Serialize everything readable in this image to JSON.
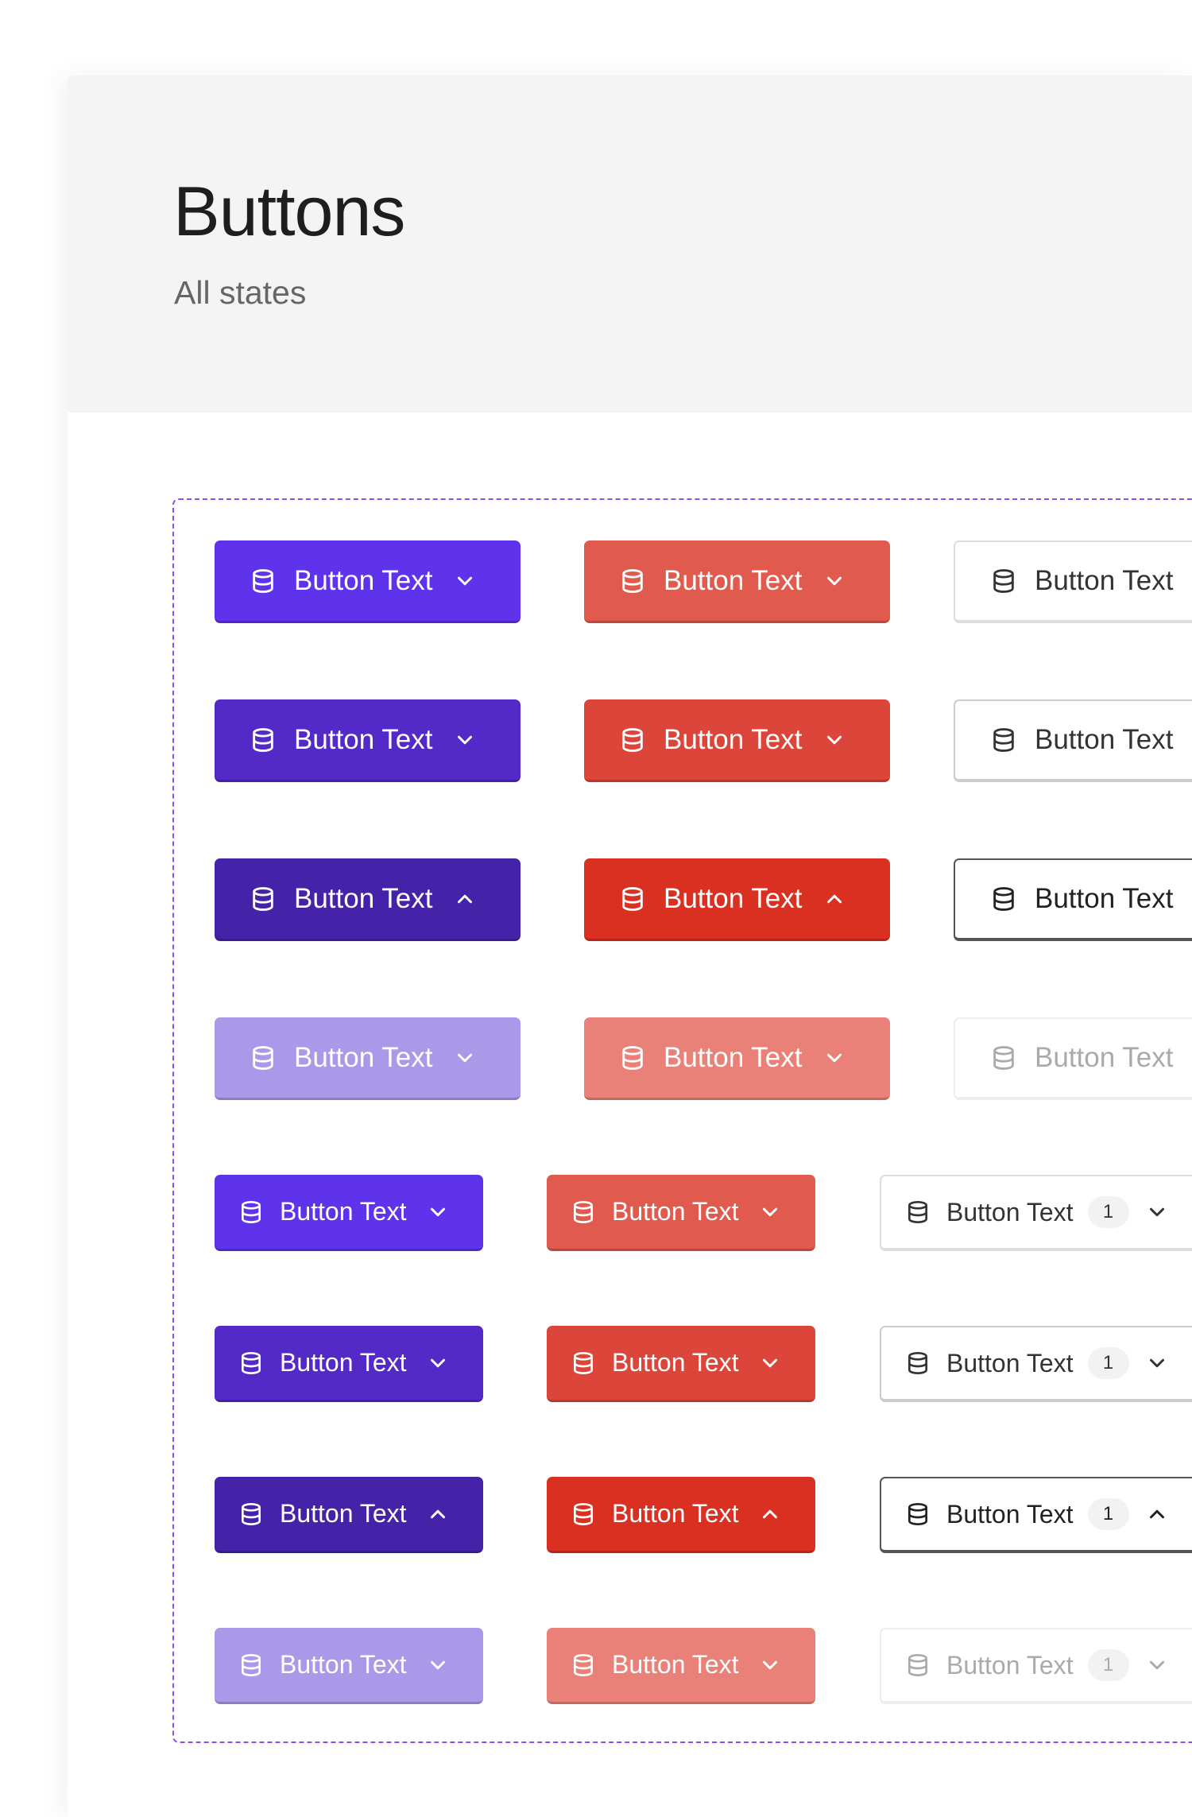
{
  "header": {
    "title": "Buttons",
    "subtitle": "All states"
  },
  "colors": {
    "primary": [
      "#5f33eb",
      "#5329c8",
      "#4523a8",
      "#aa98e8"
    ],
    "danger": [
      "#e05a4d",
      "#dc4539",
      "#da3021",
      "#ea8179"
    ],
    "outline_border": [
      "#dddddd",
      "#cccccc",
      "#555555",
      "#eeeeee"
    ],
    "outline_text": [
      "#333333",
      "#333333",
      "#222222",
      "#aaaaaa"
    ]
  },
  "states": [
    "default",
    "hover",
    "active",
    "disabled"
  ],
  "chevrons": [
    "down",
    "down",
    "up",
    "down"
  ],
  "large": {
    "label": "Button Text",
    "icon": "database-icon"
  },
  "small": {
    "label": "Button Text",
    "icon": "database-icon",
    "count": "1"
  }
}
